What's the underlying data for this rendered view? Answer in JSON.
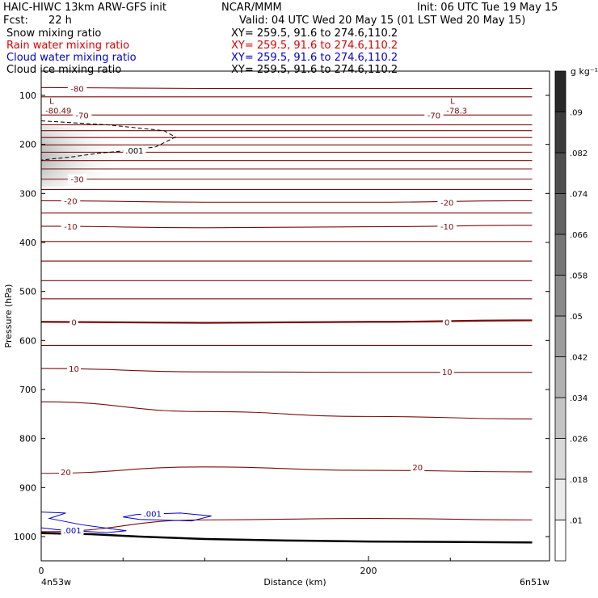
{
  "header": {
    "line1_left": "HAIC-HIWC 13km ARW-GFS init",
    "line1_mid": "NCAR/MMM",
    "line1_right": "Init: 06 UTC Tue 19 May 15",
    "fcst_label": "Fcst:",
    "fcst_value": "22 h",
    "valid": "Valid: 04 UTC Wed 20 May 15 (01 LST Wed 20 May 15)"
  },
  "fields": [
    {
      "name": "Snow mixing ratio",
      "xy": "XY= 259.5, 91.6 to 274.6,110.2",
      "color": "#000000"
    },
    {
      "name": "Rain water mixing ratio",
      "xy": "XY= 259.5, 91.6 to 274.6,110.2",
      "color": "#e00000"
    },
    {
      "name": "Cloud water mixing ratio",
      "xy": "XY= 259.5, 91.6 to 274.6,110.2",
      "color": "#0000c8"
    },
    {
      "name": "Cloud ice mixing ratio",
      "xy": "XY= 259.5, 91.6 to 274.6,110.2",
      "color": "#000000"
    }
  ],
  "chart_data": {
    "type": "cross-section",
    "xlabel": "Distance (km)",
    "ylabel": "Pressure (hPa)",
    "xlim": [
      0,
      300
    ],
    "ylim": [
      1050,
      70
    ],
    "x_ticks": [
      {
        "value": 0,
        "label": "0"
      },
      {
        "value": 200,
        "label": "200"
      }
    ],
    "x_end_labels": {
      "left": "4n53w",
      "right": "6n51w"
    },
    "y_ticks": [
      100,
      200,
      300,
      400,
      500,
      600,
      700,
      800,
      900,
      1000
    ],
    "temperature_contours": {
      "units": "deg C",
      "color": "#7a0b0b",
      "bold_levels": [
        0
      ],
      "levels": [
        {
          "t": -80,
          "p": [
            84,
            86,
            86,
            86
          ]
        },
        {
          "t": -75,
          "p": [
            103,
            103,
            103,
            103
          ]
        },
        {
          "t": -70,
          "p": [
            140,
            140,
            140,
            140
          ]
        },
        {
          "t": -65,
          "p": [
            160,
            160,
            160,
            160
          ]
        },
        {
          "t": -60,
          "p": [
            172,
            172,
            172,
            172
          ]
        },
        {
          "t": -55,
          "p": [
            186,
            186,
            186,
            186
          ]
        },
        {
          "t": -50,
          "p": [
            201,
            201,
            201,
            201
          ]
        },
        {
          "t": -45,
          "p": [
            216,
            216,
            216,
            216
          ]
        },
        {
          "t": -40,
          "p": [
            233,
            233,
            233,
            233
          ]
        },
        {
          "t": -35,
          "p": [
            250,
            250,
            250,
            250
          ]
        },
        {
          "t": -30,
          "p": [
            271,
            271,
            271,
            271
          ]
        },
        {
          "t": -25,
          "p": [
            292,
            292,
            292,
            292
          ]
        },
        {
          "t": -20,
          "p": [
            315,
            318,
            318,
            315
          ]
        },
        {
          "t": -15,
          "p": [
            340,
            340,
            340,
            340
          ]
        },
        {
          "t": -10,
          "p": [
            367,
            370,
            368,
            365
          ]
        },
        {
          "t": -5,
          "p": [
            398,
            398,
            398,
            398
          ]
        },
        {
          "t": -5,
          "p": [
            438,
            438,
            438,
            438
          ]
        },
        {
          "t": -5,
          "p": [
            478,
            478,
            478,
            478
          ]
        },
        {
          "t": -5,
          "p": [
            515,
            515,
            515,
            515
          ]
        },
        {
          "t": 0,
          "p": [
            562,
            564,
            562,
            559
          ]
        },
        {
          "t": 5,
          "p": [
            610,
            610,
            610,
            610
          ]
        },
        {
          "t": 10,
          "p": [
            657,
            664,
            665,
            665
          ]
        },
        {
          "t": 15,
          "p": [
            725,
            745,
            755,
            760
          ]
        },
        {
          "t": 20,
          "p": [
            871,
            858,
            865,
            868
          ]
        },
        {
          "t": 25,
          "p": [
            990,
            966,
            963,
            966
          ]
        }
      ],
      "labels": [
        {
          "text": "-80",
          "x": 22,
          "p": 86
        },
        {
          "text": "-70",
          "x": 25,
          "p": 140
        },
        {
          "text": "-70",
          "x": 240,
          "p": 140
        },
        {
          "text": "-30",
          "x": 22,
          "p": 271
        },
        {
          "text": "-20",
          "x": 18,
          "p": 315
        },
        {
          "text": "-20",
          "x": 248,
          "p": 318
        },
        {
          "text": "-10",
          "x": 18,
          "p": 367
        },
        {
          "text": "-10",
          "x": 248,
          "p": 367
        },
        {
          "text": "0",
          "x": 20,
          "p": 562
        },
        {
          "text": "0",
          "x": 248,
          "p": 562
        },
        {
          "text": "10",
          "x": 20,
          "p": 657
        },
        {
          "text": "10",
          "x": 248,
          "p": 664
        },
        {
          "text": "20",
          "x": 15,
          "p": 868
        },
        {
          "text": "20",
          "x": 230,
          "p": 858
        }
      ],
      "extrema": [
        {
          "mark": "L",
          "value": "-80.49",
          "x": 5,
          "p": 88
        },
        {
          "mark": "L",
          "value": "-78.3",
          "x": 250,
          "p": 88
        }
      ]
    },
    "ice_contour": {
      "level": ".001",
      "style": "dashed",
      "color": "#000000",
      "points": [
        [
          0,
          152
        ],
        [
          40,
          160
        ],
        [
          75,
          172
        ],
        [
          82,
          185
        ],
        [
          70,
          205
        ],
        [
          55,
          212
        ],
        [
          35,
          218
        ],
        [
          20,
          225
        ],
        [
          0,
          232
        ]
      ],
      "label": {
        "text": ".001",
        "x": 57,
        "p": 212
      }
    },
    "cloud_water_contours": {
      "color": "#0000c8",
      "level": ".001",
      "paths": [
        [
          [
            0,
            950
          ],
          [
            15,
            952
          ],
          [
            5,
            963
          ],
          [
            25,
            976
          ],
          [
            52,
            988
          ],
          [
            40,
            992
          ],
          [
            10,
            986
          ],
          [
            0,
            982
          ]
        ],
        [
          [
            58,
            955
          ],
          [
            85,
            952
          ],
          [
            104,
            958
          ],
          [
            92,
            968
          ],
          [
            60,
            965
          ],
          [
            50,
            960
          ],
          [
            58,
            955
          ]
        ]
      ],
      "labels": [
        {
          "text": ".001",
          "x": 68,
          "p": 953
        },
        {
          "text": ".001",
          "x": 19,
          "p": 987
        }
      ]
    },
    "snow_shading": {
      "cx": 0,
      "p": 225,
      "peak": 0.09,
      "color_low": "#ffffff",
      "color_high": "#202020"
    },
    "terrain_pressure": [
      [
        0,
        993
      ],
      [
        30,
        995
      ],
      [
        60,
        1000
      ],
      [
        100,
        1005
      ],
      [
        150,
        1008
      ],
      [
        200,
        1010
      ],
      [
        250,
        1011
      ],
      [
        300,
        1012
      ]
    ],
    "colorbar": {
      "unit": "g kg⁻¹",
      "levels": [
        ".01",
        ".018",
        ".026",
        ".034",
        ".042",
        ".05",
        ".058",
        ".066",
        ".074",
        ".082",
        ".09"
      ]
    }
  }
}
